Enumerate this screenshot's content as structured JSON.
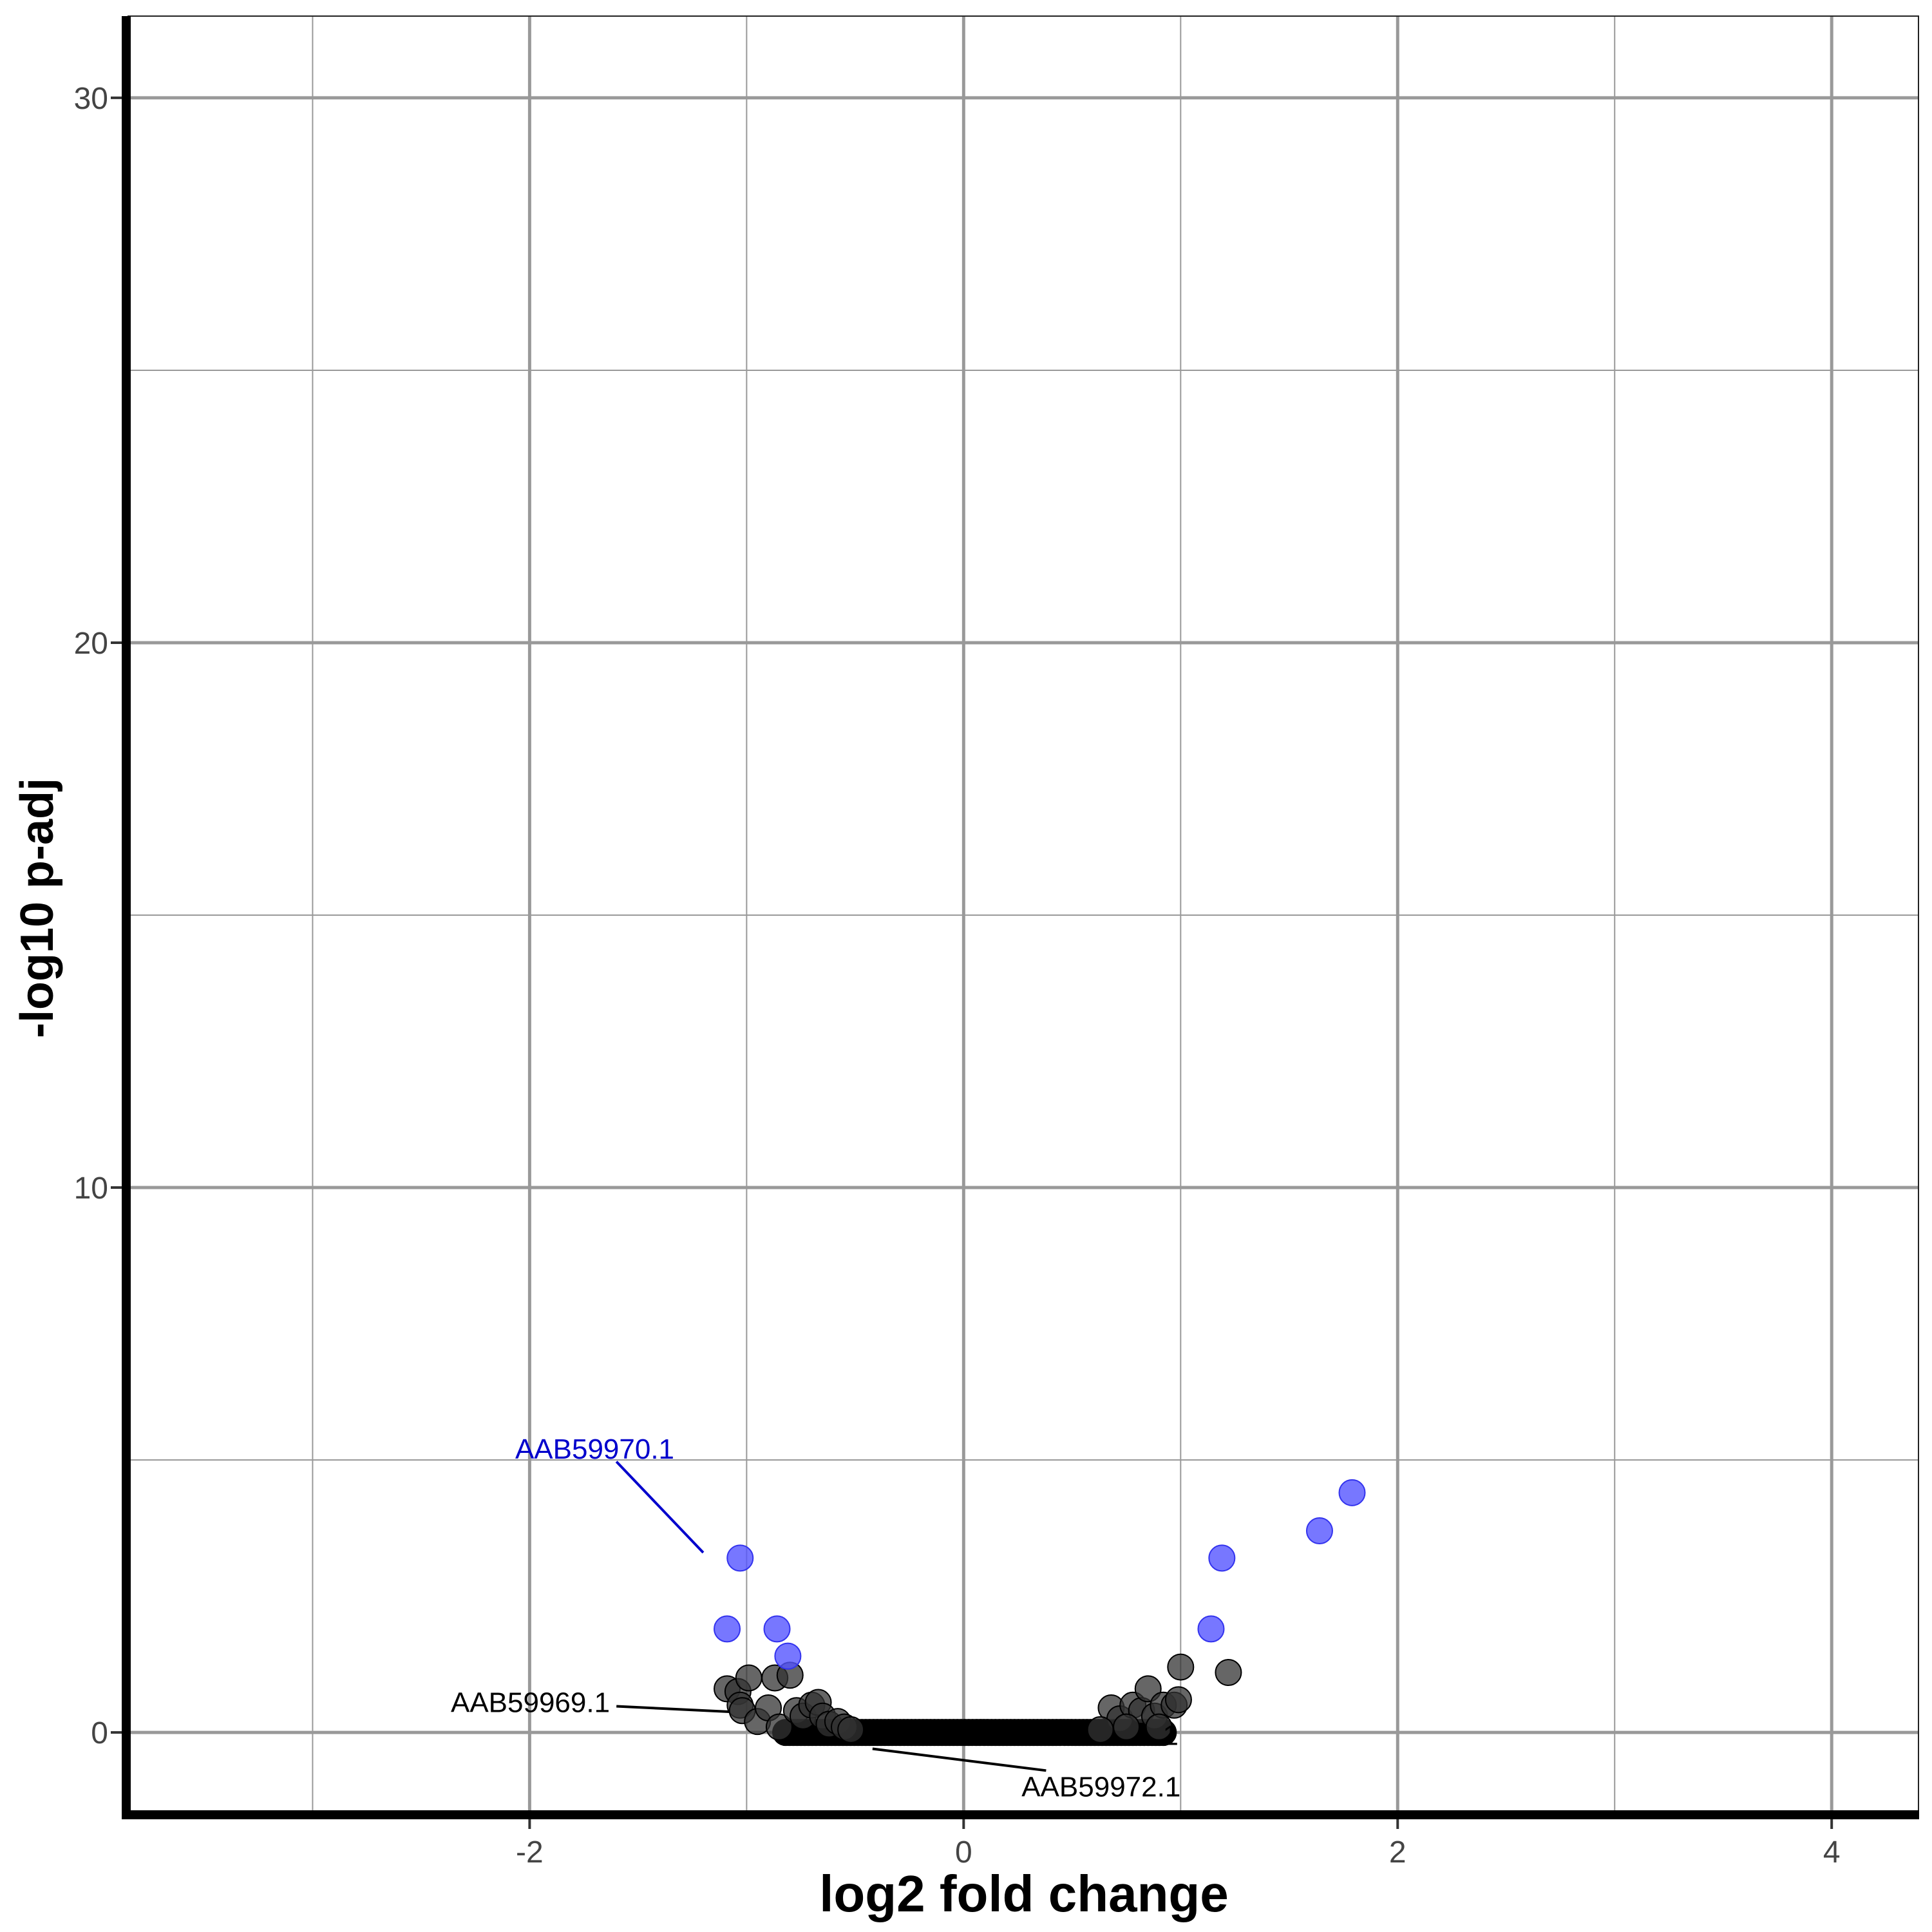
{
  "chart_data": {
    "type": "scatter",
    "title": "",
    "xlabel": "log2 fold change",
    "ylabel": "-log10 p-adj",
    "xlim": [
      -3.85,
      4.4
    ],
    "ylim": [
      -1.5,
      31.5
    ],
    "x_ticks": [
      -2,
      0,
      2,
      4
    ],
    "x_tick_labels": [
      "-2",
      "0",
      "2",
      "4"
    ],
    "x_minor_grid": [
      -3,
      -1,
      1,
      3
    ],
    "y_ticks": [
      0,
      10,
      20,
      30
    ],
    "y_tick_labels": [
      "0",
      "10",
      "20",
      "30"
    ],
    "y_minor_grid": [
      5,
      15,
      25
    ],
    "grid": true,
    "legend": "none",
    "colors": {
      "significant": "#5555ff",
      "not_significant": "#333333",
      "label_significant": "#0000cc",
      "label_not_significant": "#000000",
      "grid": "#999999",
      "axis": "#000000"
    },
    "series": [
      {
        "status": "significant",
        "points": [
          {
            "x": -1.03,
            "y": 3.2
          },
          {
            "x": -1.09,
            "y": 1.9
          },
          {
            "x": -0.86,
            "y": 1.9
          },
          {
            "x": -0.81,
            "y": 1.4
          },
          {
            "x": 1.19,
            "y": 3.2
          },
          {
            "x": 1.14,
            "y": 1.9
          },
          {
            "x": 1.64,
            "y": 3.7
          },
          {
            "x": 1.79,
            "y": 4.4
          }
        ]
      },
      {
        "status": "not_significant",
        "points": [
          {
            "x": -1.09,
            "y": 0.8
          },
          {
            "x": -1.04,
            "y": 0.75
          },
          {
            "x": -0.99,
            "y": 1.0
          },
          {
            "x": -1.03,
            "y": 0.5
          },
          {
            "x": -1.02,
            "y": 0.4
          },
          {
            "x": -0.95,
            "y": 0.2
          },
          {
            "x": -0.9,
            "y": 0.45
          },
          {
            "x": -0.87,
            "y": 1.0
          },
          {
            "x": -0.8,
            "y": 1.05
          },
          {
            "x": -0.85,
            "y": 0.1
          },
          {
            "x": -0.77,
            "y": 0.4
          },
          {
            "x": -0.74,
            "y": 0.3
          },
          {
            "x": -0.7,
            "y": 0.5
          },
          {
            "x": -0.67,
            "y": 0.55
          },
          {
            "x": -0.65,
            "y": 0.3
          },
          {
            "x": -0.62,
            "y": 0.15
          },
          {
            "x": -0.58,
            "y": 0.2
          },
          {
            "x": -0.55,
            "y": 0.1
          },
          {
            "x": -0.52,
            "y": 0.05
          },
          {
            "x": 0.68,
            "y": 0.45
          },
          {
            "x": 0.72,
            "y": 0.25
          },
          {
            "x": 0.78,
            "y": 0.5
          },
          {
            "x": 0.82,
            "y": 0.4
          },
          {
            "x": 0.85,
            "y": 0.8
          },
          {
            "x": 0.88,
            "y": 0.3
          },
          {
            "x": 0.92,
            "y": 0.5
          },
          {
            "x": 0.97,
            "y": 0.5
          },
          {
            "x": 0.99,
            "y": 0.6
          },
          {
            "x": 1.0,
            "y": 1.2
          },
          {
            "x": 1.22,
            "y": 1.1
          },
          {
            "x": 0.63,
            "y": 0.05
          },
          {
            "x": 0.75,
            "y": 0.1
          },
          {
            "x": 0.9,
            "y": 0.1
          }
        ],
        "band": {
          "x_from": -0.82,
          "x_to": 0.92,
          "y": 0,
          "count": 100
        }
      }
    ],
    "annotations": [
      {
        "text": "AAB59970.1",
        "status": "significant",
        "text_x": -1.7,
        "text_y": 5.2,
        "line_from": [
          -1.6,
          4.97
        ],
        "line_to": [
          -1.2,
          3.3
        ],
        "anchor": "middle"
      },
      {
        "text": "AAB59969.1",
        "status": "not_significant",
        "text_x": -1.63,
        "text_y": 0.55,
        "line_from": [
          -1.6,
          0.48
        ],
        "line_to": [
          -1.08,
          0.38
        ],
        "anchor": "end"
      },
      {
        "text": "AAB59972.1",
        "status": "not_significant",
        "text_x": 1.0,
        "text_y": -1.0,
        "line_from": [
          0.38,
          -0.7
        ],
        "line_to": [
          -0.42,
          -0.3
        ],
        "anchor": "end"
      },
      {
        "text": ".1",
        "status": "not_significant",
        "text_x": 0.99,
        "text_y": -0.05,
        "line_from": null,
        "line_to": null,
        "anchor": "end"
      }
    ]
  }
}
